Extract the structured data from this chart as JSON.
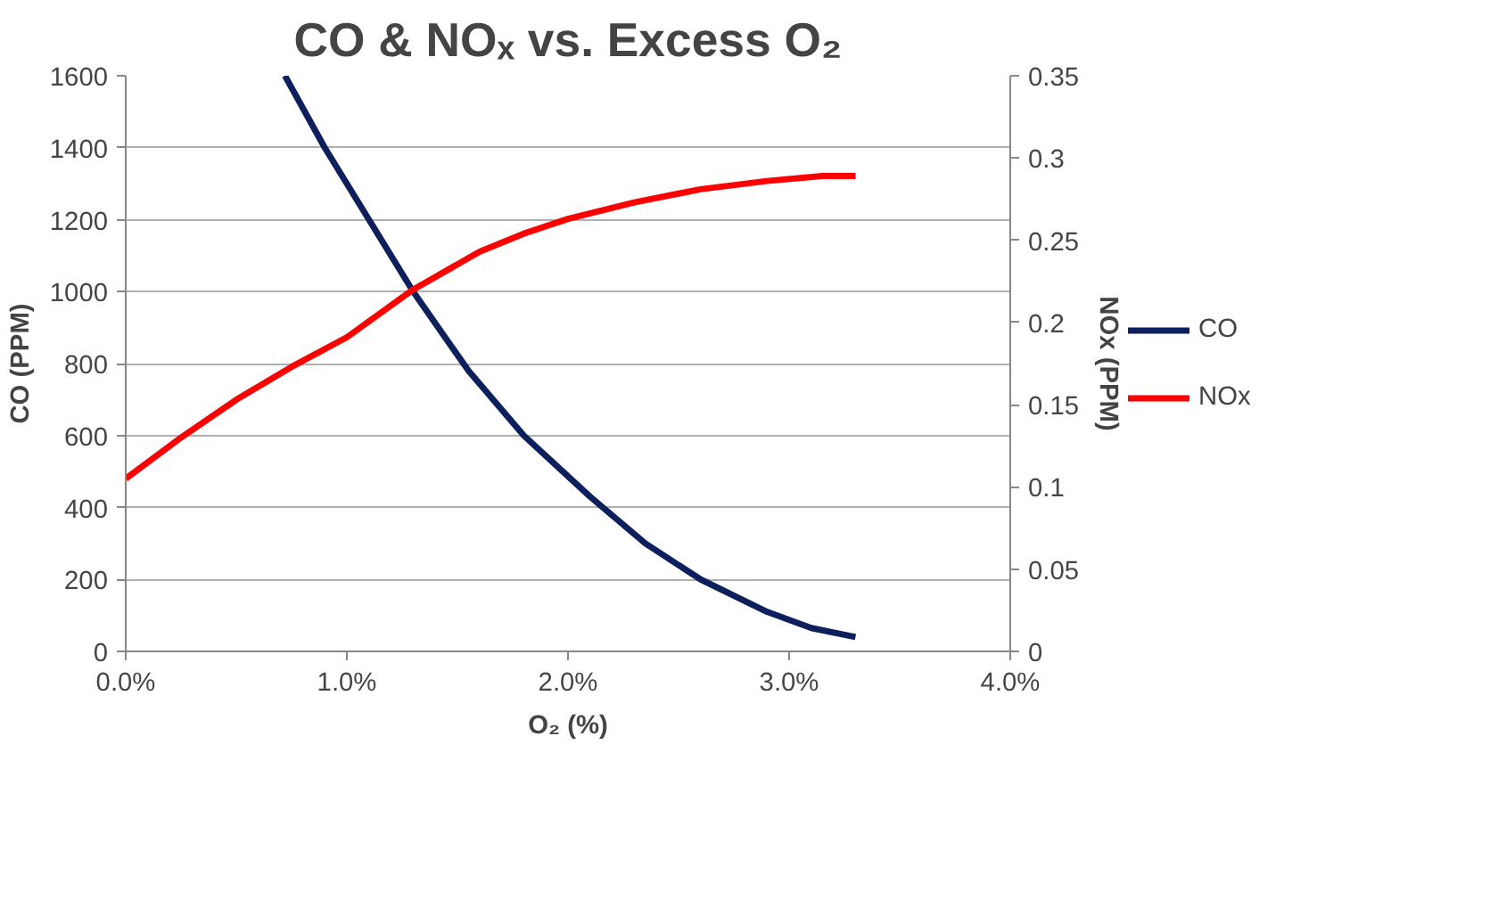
{
  "chart_data": {
    "type": "line",
    "title": "CO & NOₓ vs. Excess O₂",
    "xlabel": "O₂ (%)",
    "ylabel": "CO (PPM)",
    "y2label": "NOx (PPM)",
    "xlim": [
      0,
      4
    ],
    "xticks": [
      {
        "value": 0,
        "label": "0.0%"
      },
      {
        "value": 1,
        "label": "1.0%"
      },
      {
        "value": 2,
        "label": "2.0%"
      },
      {
        "value": 3,
        "label": "3.0%"
      },
      {
        "value": 4,
        "label": "4.0%"
      }
    ],
    "ylim": [
      0,
      1600
    ],
    "yticks": [
      0,
      200,
      400,
      600,
      800,
      1000,
      1200,
      1400,
      1600
    ],
    "y2lim": [
      0,
      0.35
    ],
    "y2ticks": [
      0,
      0.05,
      0.1,
      0.15,
      0.2,
      0.25,
      0.3,
      0.35
    ],
    "grid": "y",
    "legend": "right",
    "marker": "none",
    "line_style": "solid",
    "series": [
      {
        "name": "CO",
        "color": "#0d1f5c",
        "x": [
          0.72,
          0.9,
          1.1,
          1.3,
          1.55,
          1.8,
          2.1,
          2.35,
          2.6,
          2.9,
          3.1,
          3.3
        ],
        "values": [
          1600,
          1400,
          1200,
          1000,
          780,
          600,
          430,
          300,
          200,
          110,
          65,
          40
        ]
      },
      {
        "name": "NOx",
        "color": "#ff0000",
        "axis": "y2",
        "x": [
          0,
          0.25,
          0.5,
          0.75,
          1.0,
          1.3,
          1.6,
          1.8,
          2.0,
          2.3,
          2.6,
          2.9,
          3.15,
          3.3
        ],
        "values": [
          0.105,
          0.13,
          0.153,
          0.173,
          0.191,
          0.22,
          0.243,
          0.254,
          0.263,
          0.273,
          0.281,
          0.286,
          0.289,
          0.289
        ]
      }
    ]
  }
}
